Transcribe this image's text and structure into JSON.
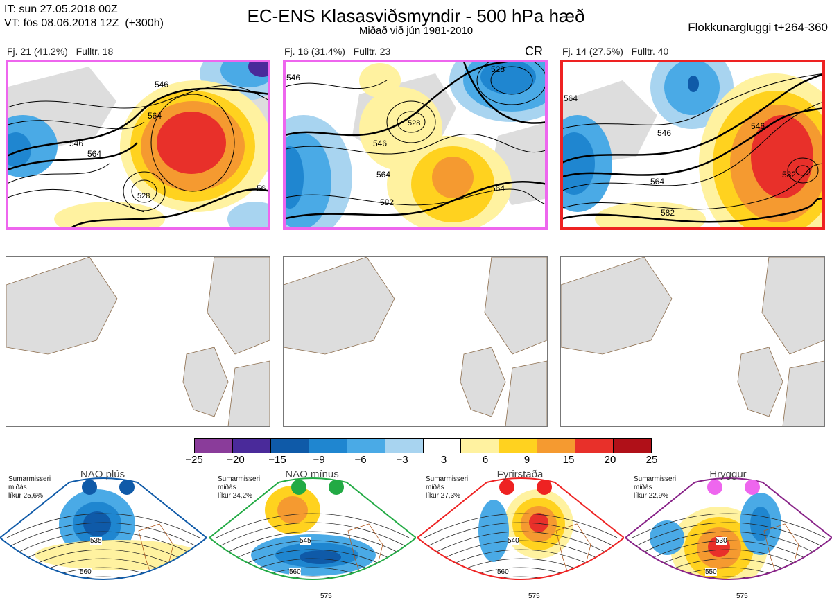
{
  "header": {
    "it": "IT: sun 27.05.2018 00Z",
    "vt": "VT: fös 08.06.2018 12Z  (+300h)",
    "title": "EC-ENS Klasasviðsmyndir - 500 hPa hæð",
    "subtitle": "Miðað við jún 1981-2010",
    "window": "Flokkunargluggi t+264-360"
  },
  "panels": [
    {
      "label": "Fj. 21 (41.2%)",
      "rep": "Fulltr. 18",
      "frame_color": "#ee66ee",
      "extra": ""
    },
    {
      "label": "Fj. 16 (31.4%)",
      "rep": "Fulltr. 23",
      "frame_color": "#ee66ee",
      "extra": "CR"
    },
    {
      "label": "Fj. 14 (27.5%)",
      "rep": "Fulltr. 40",
      "frame_color": "#ee2222",
      "extra": ""
    }
  ],
  "colorbar": {
    "ticks": [
      "−25",
      "−20",
      "−15",
      "−9",
      "−6",
      "−3",
      "3",
      "6",
      "9",
      "15",
      "20",
      "25"
    ],
    "colors": [
      "#8a3c9a",
      "#4a2a9a",
      "#0f5aa8",
      "#1f86d0",
      "#4aaae6",
      "#a8d4f0",
      "#ffffff",
      "#fff2a0",
      "#ffd21f",
      "#f59a30",
      "#e8302a",
      "#b01018"
    ]
  },
  "regimes": [
    {
      "title": "NAO plús",
      "text": "Sumarmisseri\nmiðás\nlíkur 25,6%",
      "color": "#0f5aa8",
      "line": "#0f5aa8",
      "labels": [
        "535",
        "560"
      ]
    },
    {
      "title": "NAO mínus",
      "text": "Sumarmisseri\nmiðás\nlíkur 24,2%",
      "color": "#22aa44",
      "line": "#22aa44",
      "labels": [
        "545",
        "560",
        "575"
      ]
    },
    {
      "title": "Fyrirstaða",
      "text": "Sumarmisseri\nmiðás\nlíkur 27,3%",
      "color": "#ee2222",
      "line": "#ee2222",
      "labels": [
        "540",
        "560",
        "575"
      ]
    },
    {
      "title": "Hryggur",
      "text": "Sumarmisseri\nmiðás\nlíkur 22,9%",
      "color": "#ee66ee",
      "line": "#882288",
      "labels": [
        "530",
        "550",
        "575"
      ]
    }
  ],
  "contour_labels": {
    "p1": [
      "546",
      "564",
      "546",
      "56",
      "564",
      "528"
    ],
    "p2": [
      "546",
      "528",
      "546",
      "564",
      "582",
      "564",
      "528"
    ],
    "p3": [
      "564",
      "546",
      "564",
      "582",
      "582",
      "546"
    ]
  },
  "icons": {
    "land": "land-mass",
    "contour": "height-contour"
  }
}
